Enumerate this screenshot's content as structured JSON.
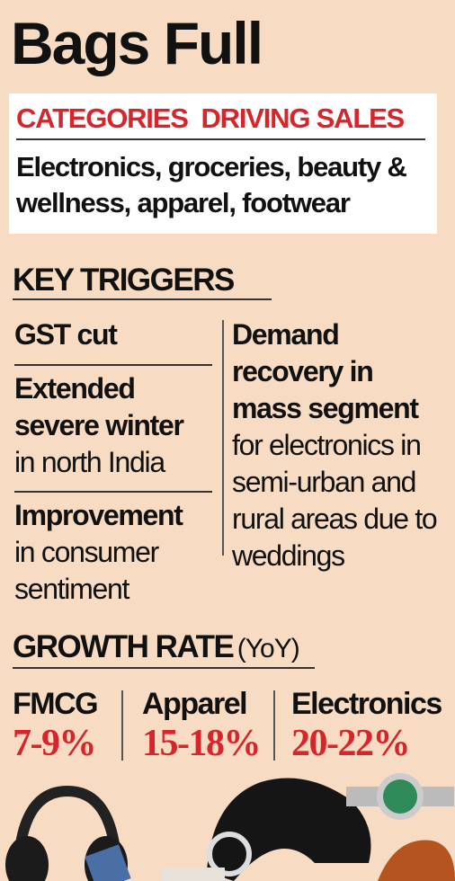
{
  "title": "Bags Full",
  "categories_box": {
    "heading": "CATEGORIES  DRIVING SALES",
    "text": "Electronics, groceries, beauty & wellness, apparel, footwear"
  },
  "key_triggers": {
    "heading": "KEY TRIGGERS",
    "left": [
      {
        "bold": "GST cut"
      },
      {
        "bold": "Extended severe winter",
        "text": "in north India"
      },
      {
        "bold": "Improvement",
        "text": "in consumer sentiment"
      }
    ],
    "right": {
      "bold": "Demand recovery in mass segment",
      "text": "for electronics in semi-urban and rural areas due to weddings"
    }
  },
  "growth_rate": {
    "heading": "GROWTH RATE",
    "qualifier": "(YoY)",
    "items": [
      {
        "label": "FMCG",
        "value": "7-9%"
      },
      {
        "label": "Apparel",
        "value": "15-18%"
      },
      {
        "label": "Electronics",
        "value": "20-22%"
      }
    ]
  }
}
